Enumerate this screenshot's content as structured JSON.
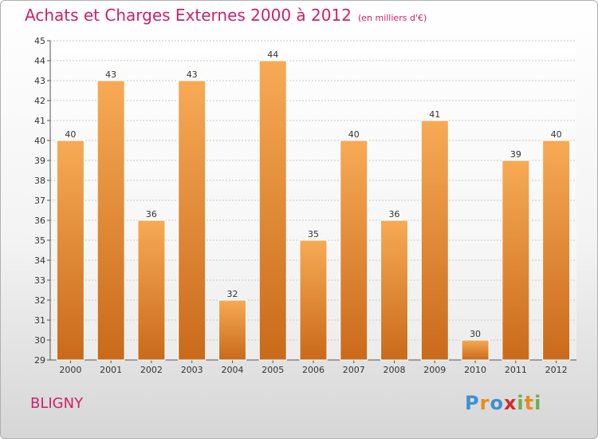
{
  "title": "Achats et Charges Externes 2000 à 2012",
  "unit": "(en milliers d'€)",
  "commune": "BLIGNY",
  "logo": {
    "letters": [
      "P",
      "r",
      "o",
      "x",
      "i",
      "t",
      "i"
    ],
    "colors": [
      "#3f8fd2",
      "#e98a1e",
      "#3f8fd2",
      "#d02a2a",
      "#6ab04c",
      "#e98a1e",
      "#6ab04c"
    ]
  },
  "colors": {
    "bar_top": "#f7aa55",
    "bar_bottom": "#c96a1a",
    "title": "#d0206a"
  },
  "chart_data": {
    "type": "bar",
    "categories": [
      "2000",
      "2001",
      "2002",
      "2003",
      "2004",
      "2005",
      "2006",
      "2007",
      "2008",
      "2009",
      "2010",
      "2011",
      "2012"
    ],
    "values": [
      40,
      43,
      36,
      43,
      32,
      44,
      35,
      40,
      36,
      41,
      30,
      39,
      40
    ],
    "ylim": [
      29,
      45
    ],
    "yticks": [
      29,
      30,
      31,
      32,
      33,
      34,
      35,
      36,
      37,
      38,
      39,
      40,
      41,
      42,
      43,
      44,
      45
    ],
    "grid": true
  }
}
